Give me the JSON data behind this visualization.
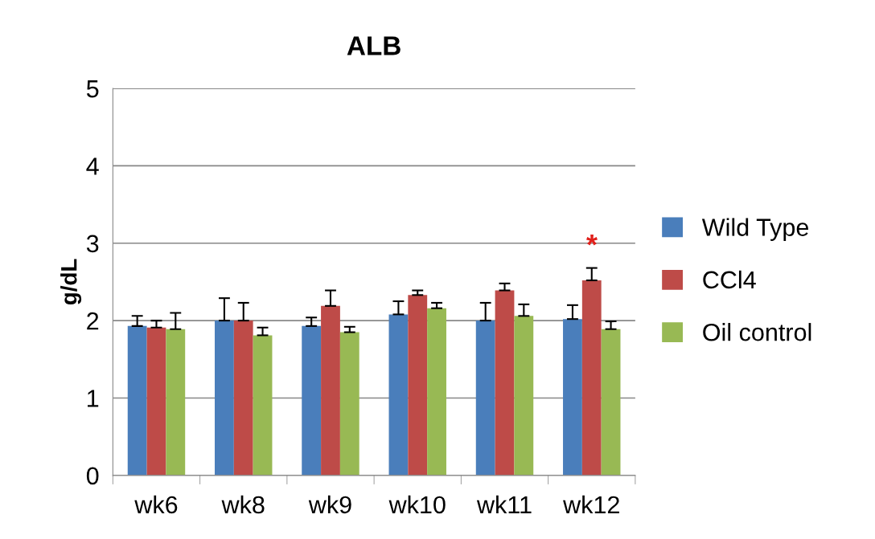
{
  "chart_data": {
    "type": "bar",
    "title": "ALB",
    "ylabel": "g/dL",
    "categories": [
      "wk6",
      "wk8",
      "wk9",
      "wk10",
      "wk11",
      "wk12"
    ],
    "series": [
      {
        "name": "Wild Type",
        "color": "#4a7ebb",
        "values": [
          1.93,
          2.0,
          1.93,
          2.08,
          2.0,
          2.02
        ],
        "errors": [
          [
            1.93,
            2.06
          ],
          [
            2.0,
            2.29
          ],
          [
            1.93,
            2.04
          ],
          [
            2.08,
            2.25
          ],
          [
            2.0,
            2.23
          ],
          [
            2.02,
            2.2
          ]
        ]
      },
      {
        "name": "CCl4",
        "color": "#be4b48",
        "values": [
          1.91,
          2.0,
          2.19,
          2.33,
          2.39,
          2.52
        ],
        "errors": [
          [
            1.91,
            2.0
          ],
          [
            2.0,
            2.23
          ],
          [
            2.19,
            2.39
          ],
          [
            2.33,
            2.39
          ],
          [
            2.39,
            2.48
          ],
          [
            2.52,
            2.68
          ]
        ]
      },
      {
        "name": "Oil control",
        "color": "#98b954",
        "values": [
          1.89,
          1.81,
          1.85,
          2.16,
          2.06,
          1.89
        ],
        "errors": [
          [
            1.89,
            2.1
          ],
          [
            1.81,
            1.91
          ],
          [
            1.85,
            1.92
          ],
          [
            2.16,
            2.23
          ],
          [
            2.06,
            2.21
          ],
          [
            1.89,
            1.99
          ]
        ]
      }
    ],
    "annotations": [
      "*"
    ],
    "ylim": [
      0,
      5
    ],
    "yticks": [
      0,
      1,
      2,
      3,
      4,
      5
    ],
    "grid": "y",
    "legend": "right"
  }
}
